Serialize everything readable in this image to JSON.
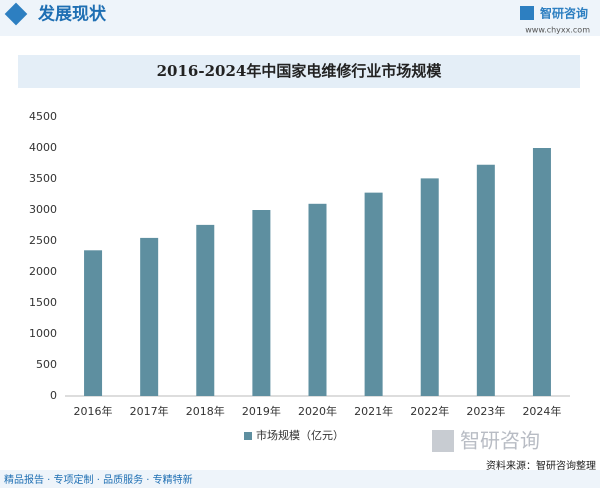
{
  "header": {
    "title": "发展现状",
    "logo": "智研咨询",
    "url": "www.chyxx.com"
  },
  "chart_data": {
    "type": "bar",
    "title": "2016-2024年中国家电维修行业市场规模",
    "categories": [
      "2016年",
      "2017年",
      "2018年",
      "2019年",
      "2020年",
      "2021年",
      "2022年",
      "2023年",
      "2024年"
    ],
    "series": [
      {
        "name": "市场规模（亿元）",
        "color": "#5e8fa0",
        "values": [
          2350,
          2550,
          2760,
          3000,
          3100,
          3280,
          3510,
          3730,
          4000
        ]
      }
    ],
    "ylim": [
      0,
      4500
    ],
    "yticks": [
      0,
      500,
      1000,
      1500,
      2000,
      2500,
      3000,
      3500,
      4000,
      4500
    ],
    "grid": false,
    "legend": "bottom"
  },
  "footer": {
    "slogan": "精品报告 · 专项定制 · 品质服务 · 专精特新",
    "source": "资料来源：智研咨询整理",
    "logo": "智研咨询"
  }
}
